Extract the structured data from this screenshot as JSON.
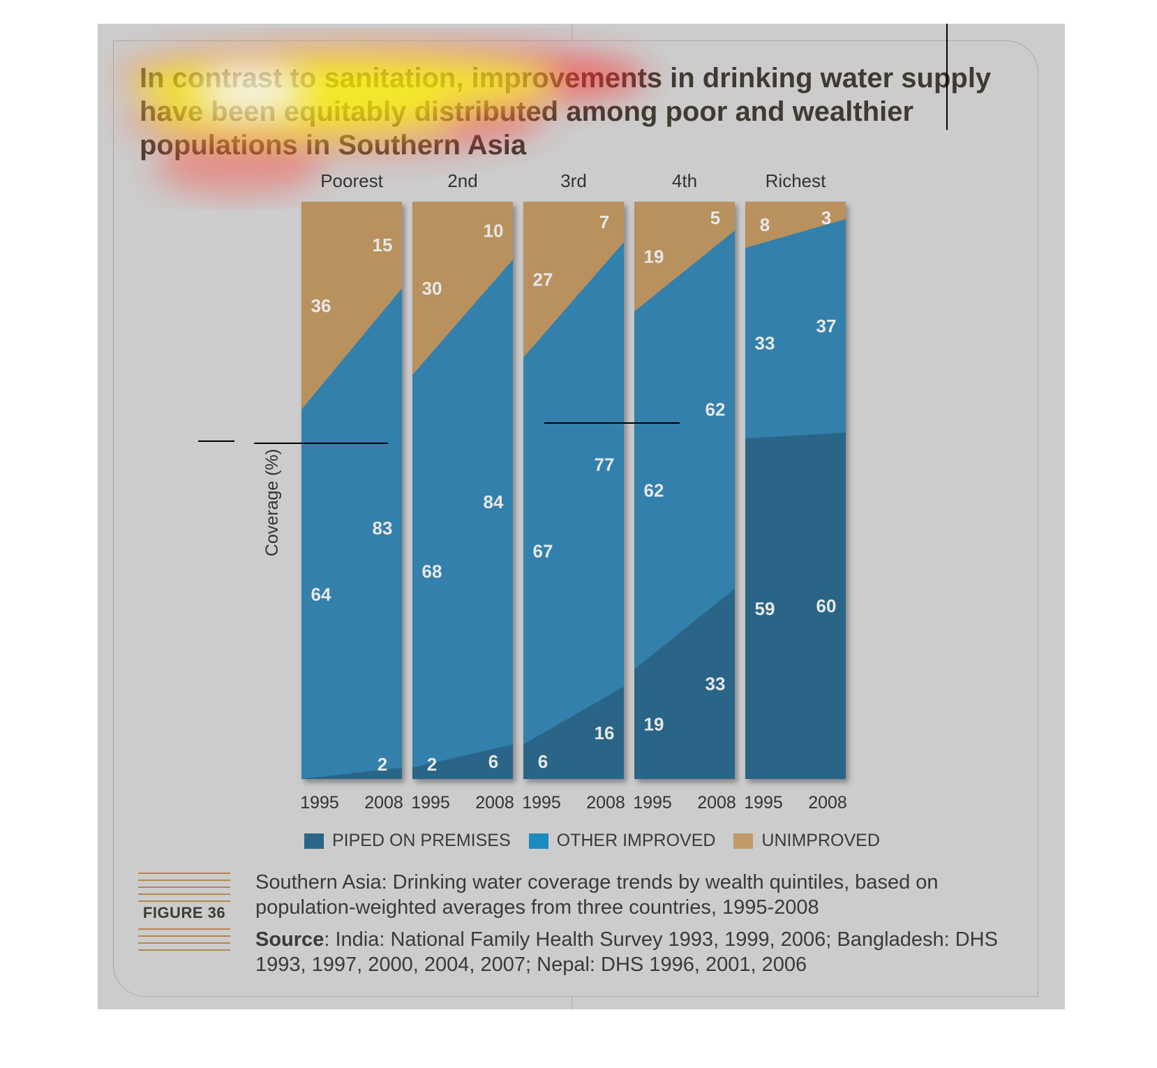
{
  "title": "In contrast to sanitation, improvements in drinking water supply have been equitably distributed among poor and wealthier populations in Southern Asia",
  "figure_label": "FIGURE 36",
  "caption": "Southern Asia: Drinking water coverage trends by wealth quintiles, based on population-weighted averages from three countries, 1995-2008",
  "source": {
    "label": "Source",
    "text": ": India: National Family Health Survey 1993, 1999, 2006; Bangladesh: DHS 1993, 1997, 2000, 2004, 2007; Nepal: DHS 1996, 2001, 2006"
  },
  "colors": {
    "piped": "#2b6587",
    "other": "#3280ab",
    "unimproved": "#b8915f",
    "legend_other": "#1b8bc0",
    "legend_unimproved": "#c29a69",
    "panel": "#cccccc"
  },
  "chart_data": {
    "type": "area",
    "ylabel": "Coverage (%)",
    "ylim": [
      0,
      100
    ],
    "grid": false,
    "legend": "bottom",
    "legend_entries": [
      "PIPED ON PREMISES",
      "OTHER IMPROVED",
      "UNIMPROVED"
    ],
    "panels": [
      {
        "name": "Poorest",
        "years": [
          "1995",
          "2008"
        ],
        "piped": [
          0,
          2
        ],
        "other": [
          64,
          83
        ],
        "unimproved": [
          36,
          15
        ]
      },
      {
        "name": "2nd",
        "years": [
          "1995",
          "2008"
        ],
        "piped": [
          2,
          6
        ],
        "other": [
          68,
          84
        ],
        "unimproved": [
          30,
          10
        ]
      },
      {
        "name": "3rd",
        "years": [
          "1995",
          "2008"
        ],
        "piped": [
          6,
          16
        ],
        "other": [
          67,
          77
        ],
        "unimproved": [
          27,
          7
        ]
      },
      {
        "name": "4th",
        "years": [
          "1995",
          "2008"
        ],
        "piped": [
          19,
          33
        ],
        "other": [
          62,
          62
        ],
        "unimproved": [
          19,
          5
        ]
      },
      {
        "name": "Richest",
        "years": [
          "1995",
          "2008"
        ],
        "piped": [
          59,
          60
        ],
        "other": [
          33,
          37
        ],
        "unimproved": [
          8,
          3
        ]
      }
    ]
  }
}
